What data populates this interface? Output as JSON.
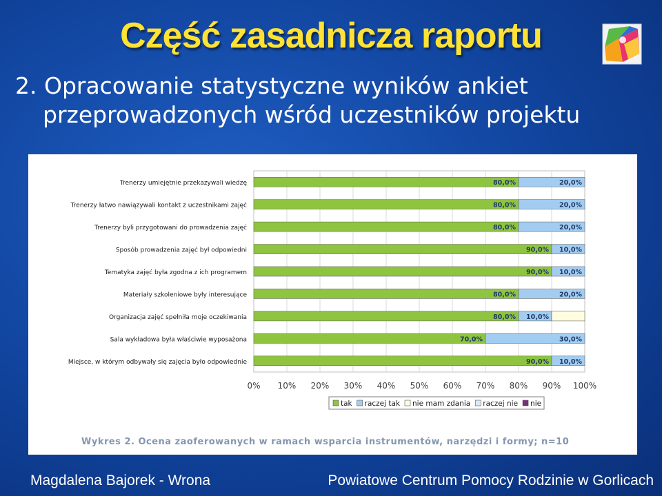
{
  "slide": {
    "title": "Część zasadnicza raportu",
    "subtitle_line1": "2. Opracowanie statystyczne wyników ankiet",
    "subtitle_line2": "przeprowadzonych wśród uczestników projektu",
    "caption": "Wykres 2. Ocena zaoferowanych w ramach wsparcia instrumentów, narzędzi i formy; n=10",
    "footer_left": "Magdalena Bajorek - Wrona",
    "footer_right": "Powiatowe Centrum Pomocy Rodzinie w Gorlicach",
    "logo_icon": "colorful-cube-logo-icon",
    "colors": {
      "background": "#10439c",
      "title": "#ffe234",
      "text": "#ffffff",
      "caption": "#8496b0"
    }
  },
  "chart_data": {
    "type": "bar",
    "orientation": "horizontal",
    "stacked": true,
    "percent": true,
    "categories": [
      "Trenerzy umiejętnie przekazywali wiedzę",
      "Trenerzy łatwo nawiązywali kontakt z uczestnikami zajęć",
      "Trenerzy byli przygotowani do prowadzenia zajęć",
      "Sposób prowadzenia zajęć był odpowiedni",
      "Tematyka zajęć była zgodna z ich programem",
      "Materiały szkoleniowe były interesujące",
      "Organizacja zajęć spełniła moje oczekiwania",
      "Sala wykładowa była właściwie wyposażona",
      "Miejsce, w którym odbywały się zajęcia było odpowiednie"
    ],
    "series": [
      {
        "name": "tak",
        "color": "#8ec43f",
        "values": [
          80,
          80,
          80,
          90,
          90,
          80,
          80,
          70,
          90
        ]
      },
      {
        "name": "raczej tak",
        "color": "#a3cdf0",
        "values": [
          20,
          20,
          20,
          10,
          10,
          20,
          10,
          30,
          10
        ]
      },
      {
        "name": "nie mam zdania",
        "color": "#fffde0",
        "values": [
          0,
          0,
          0,
          0,
          0,
          0,
          10,
          0,
          0
        ]
      },
      {
        "name": "raczej nie",
        "color": "#dbe9f7",
        "values": [
          0,
          0,
          0,
          0,
          0,
          0,
          0,
          0,
          0
        ]
      },
      {
        "name": "nie",
        "color": "#7a2e7a",
        "values": [
          0,
          0,
          0,
          0,
          0,
          0,
          0,
          0,
          0
        ]
      }
    ],
    "value_labels": [
      [
        "80,0%",
        "20,0%"
      ],
      [
        "80,0%",
        "20,0%"
      ],
      [
        "80,0%",
        "20,0%"
      ],
      [
        "90,0%",
        "10,0%"
      ],
      [
        "90,0%",
        "10,0%"
      ],
      [
        "80,0%",
        "20,0%"
      ],
      [
        "80,0%",
        "10,0%"
      ],
      [
        "70,0%",
        "30,0%"
      ],
      [
        "90,0%",
        "10,0%"
      ]
    ],
    "x_ticks": [
      "0%",
      "10%",
      "20%",
      "30%",
      "40%",
      "50%",
      "60%",
      "70%",
      "80%",
      "90%",
      "100%"
    ],
    "xlim": [
      0,
      100
    ],
    "grid": true,
    "legend_position": "bottom"
  }
}
